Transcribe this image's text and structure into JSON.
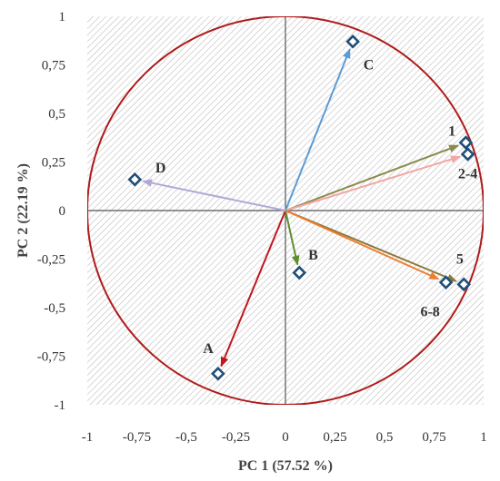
{
  "chart_data": {
    "type": "scatter",
    "title": "",
    "xlabel": "PC 1 (57.52 %)",
    "ylabel": "PC 2  (22.19 %)",
    "xlim": [
      -1,
      1
    ],
    "ylim": [
      -1,
      1
    ],
    "x_ticks": [
      {
        "value": -1,
        "label": "-1"
      },
      {
        "value": -0.75,
        "label": "-0,75"
      },
      {
        "value": -0.5,
        "label": "-0,5"
      },
      {
        "value": -0.25,
        "label": "-0,25"
      },
      {
        "value": 0,
        "label": "0"
      },
      {
        "value": 0.25,
        "label": "0,25"
      },
      {
        "value": 0.5,
        "label": "0,5"
      },
      {
        "value": 0.75,
        "label": "0,75"
      },
      {
        "value": 1,
        "label": "1"
      }
    ],
    "y_ticks": [
      {
        "value": 1,
        "label": "1"
      },
      {
        "value": 0.75,
        "label": "0,75"
      },
      {
        "value": 0.5,
        "label": "0,5"
      },
      {
        "value": 0.25,
        "label": "0,25"
      },
      {
        "value": 0,
        "label": "0"
      },
      {
        "value": -0.25,
        "label": "-0,25"
      },
      {
        "value": -0.5,
        "label": "-0,5"
      },
      {
        "value": -0.75,
        "label": "-0,75"
      },
      {
        "value": -1,
        "label": "-1"
      }
    ],
    "grid": false,
    "unit_circle": true,
    "circle_color": "#b01a1a",
    "hatch_background": true,
    "vectors": [
      {
        "id": "A",
        "x": -0.34,
        "y": -0.84,
        "color": "#c0171f"
      },
      {
        "id": "B",
        "x": 0.07,
        "y": -0.32,
        "color": "#5c8f2e"
      },
      {
        "id": "C",
        "x": 0.34,
        "y": 0.87,
        "color": "#5b9bd5"
      },
      {
        "id": "D",
        "x": -0.76,
        "y": 0.16,
        "color": "#b4a7d6"
      },
      {
        "id": "1",
        "x": 0.91,
        "y": 0.35,
        "color": "#8a8a4a"
      },
      {
        "id": "2-4",
        "x": 0.92,
        "y": 0.29,
        "color": "#f2a6a6"
      },
      {
        "id": "5",
        "x": 0.9,
        "y": -0.38,
        "color": "#8c7a3a"
      },
      {
        "id": "6-8",
        "x": 0.81,
        "y": -0.37,
        "color": "#ed7d31"
      }
    ],
    "labels": [
      {
        "text": "A",
        "x": -0.39,
        "y": -0.71
      },
      {
        "text": "B",
        "x": 0.14,
        "y": -0.23
      },
      {
        "text": "C",
        "x": 0.42,
        "y": 0.75
      },
      {
        "text": "D",
        "x": -0.63,
        "y": 0.22
      },
      {
        "text": "1",
        "x": 0.84,
        "y": 0.41
      },
      {
        "text": "2-4",
        "x": 0.92,
        "y": 0.19
      },
      {
        "text": "5",
        "x": 0.88,
        "y": -0.25
      },
      {
        "text": "6-8",
        "x": 0.73,
        "y": -0.52
      }
    ],
    "marker": {
      "shape": "diamond",
      "color": "#1f4e79",
      "fill": "#ffffff"
    }
  }
}
